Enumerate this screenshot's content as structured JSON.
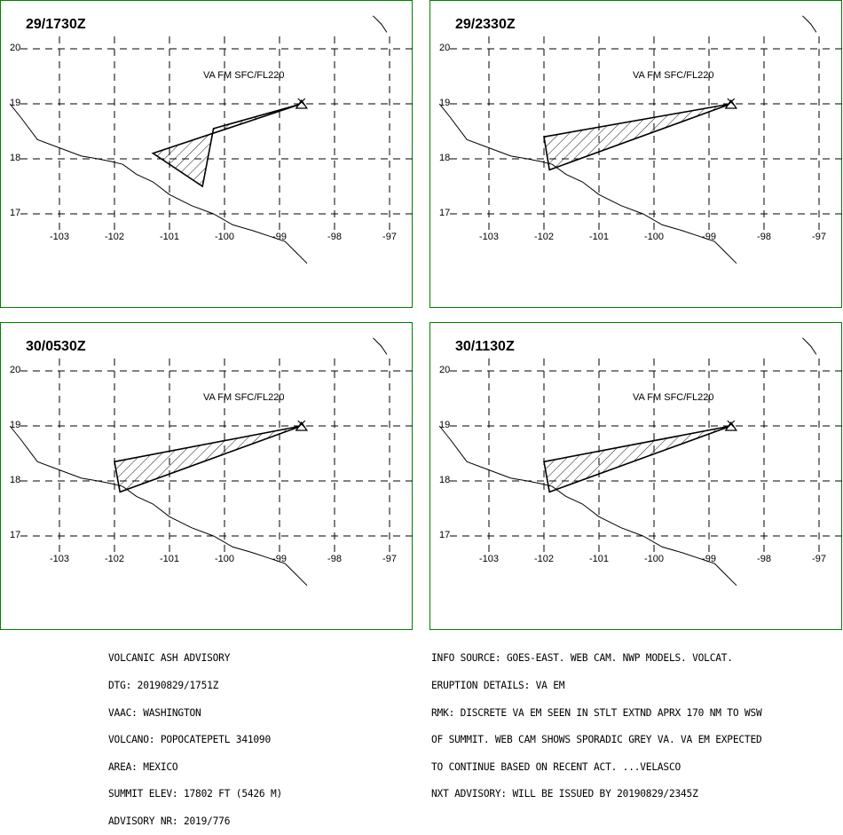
{
  "panels": [
    {
      "time": "29/1730Z",
      "va_text": "VA FM SFC/FL220",
      "ash_polygon": [
        [
          -98.6,
          19.0
        ],
        [
          -100.2,
          18.55
        ],
        [
          -100.4,
          17.5
        ],
        [
          -101.3,
          18.1
        ],
        [
          -98.6,
          19.0
        ]
      ]
    },
    {
      "time": "29/2330Z",
      "va_text": "VA FM SFC/FL220",
      "ash_polygon": [
        [
          -98.6,
          19.0
        ],
        [
          -101.9,
          17.8
        ],
        [
          -102.0,
          18.4
        ],
        [
          -98.6,
          19.0
        ]
      ]
    },
    {
      "time": "30/0530Z",
      "va_text": "VA FM SFC/FL220",
      "ash_polygon": [
        [
          -98.6,
          19.0
        ],
        [
          -101.9,
          17.8
        ],
        [
          -102.0,
          18.35
        ],
        [
          -98.6,
          19.0
        ]
      ]
    },
    {
      "time": "30/1130Z",
      "va_text": "VA FM SFC/FL220",
      "ash_polygon": [
        [
          -98.6,
          19.0
        ],
        [
          -101.9,
          17.8
        ],
        [
          -102.0,
          18.35
        ],
        [
          -98.6,
          19.0
        ]
      ]
    }
  ],
  "map": {
    "lat_labels": [
      "20",
      "19",
      "18",
      "17"
    ],
    "lon_labels": [
      "-103",
      "-102",
      "-101",
      "-100",
      "-99",
      "-98",
      "-97"
    ],
    "volcano_lonlat": [
      -98.6,
      19.0
    ],
    "coastline": [
      [
        -103.9,
        19.0
      ],
      [
        -103.7,
        18.75
      ],
      [
        -103.4,
        18.35
      ],
      [
        -103.0,
        18.2
      ],
      [
        -102.6,
        18.05
      ],
      [
        -102.3,
        18.0
      ],
      [
        -102.05,
        17.95
      ],
      [
        -101.85,
        17.9
      ],
      [
        -101.6,
        17.72
      ],
      [
        -101.3,
        17.58
      ],
      [
        -101.0,
        17.35
      ],
      [
        -100.6,
        17.15
      ],
      [
        -100.2,
        17.0
      ],
      [
        -99.85,
        16.8
      ],
      [
        -99.5,
        16.7
      ],
      [
        -99.2,
        16.6
      ],
      [
        -98.9,
        16.5
      ],
      [
        -98.7,
        16.3
      ],
      [
        -98.5,
        16.1
      ]
    ],
    "coast_ne": [
      [
        -97.3,
        20.6
      ],
      [
        -97.15,
        20.45
      ],
      [
        -97.05,
        20.3
      ]
    ],
    "colors": {
      "frame": "#008000",
      "ink": "#000000"
    }
  },
  "advisory_left": [
    "VOLCANIC ASH ADVISORY",
    "DTG: 20190829/1751Z",
    "VAAC: WASHINGTON",
    "VOLCANO: POPOCATEPETL 341090",
    "AREA: MEXICO",
    "SUMMIT ELEV: 17802 FT (5426 M)",
    "ADVISORY NR: 2019/776"
  ],
  "advisory_right": [
    "INFO SOURCE: GOES-EAST. WEB CAM. NWP MODELS. VOLCAT.",
    "ERUPTION DETAILS: VA EM",
    "RMK: DISCRETE VA EM SEEN IN STLT EXTND APRX 170 NM TO WSW",
    "OF SUMMIT. WEB CAM SHOWS SPORADIC GREY VA. VA EM EXPECTED",
    "TO CONTINUE BASED ON RECENT ACT. ...VELASCO",
    "NXT ADVISORY: WILL BE ISSUED BY 20190829/2345Z"
  ]
}
